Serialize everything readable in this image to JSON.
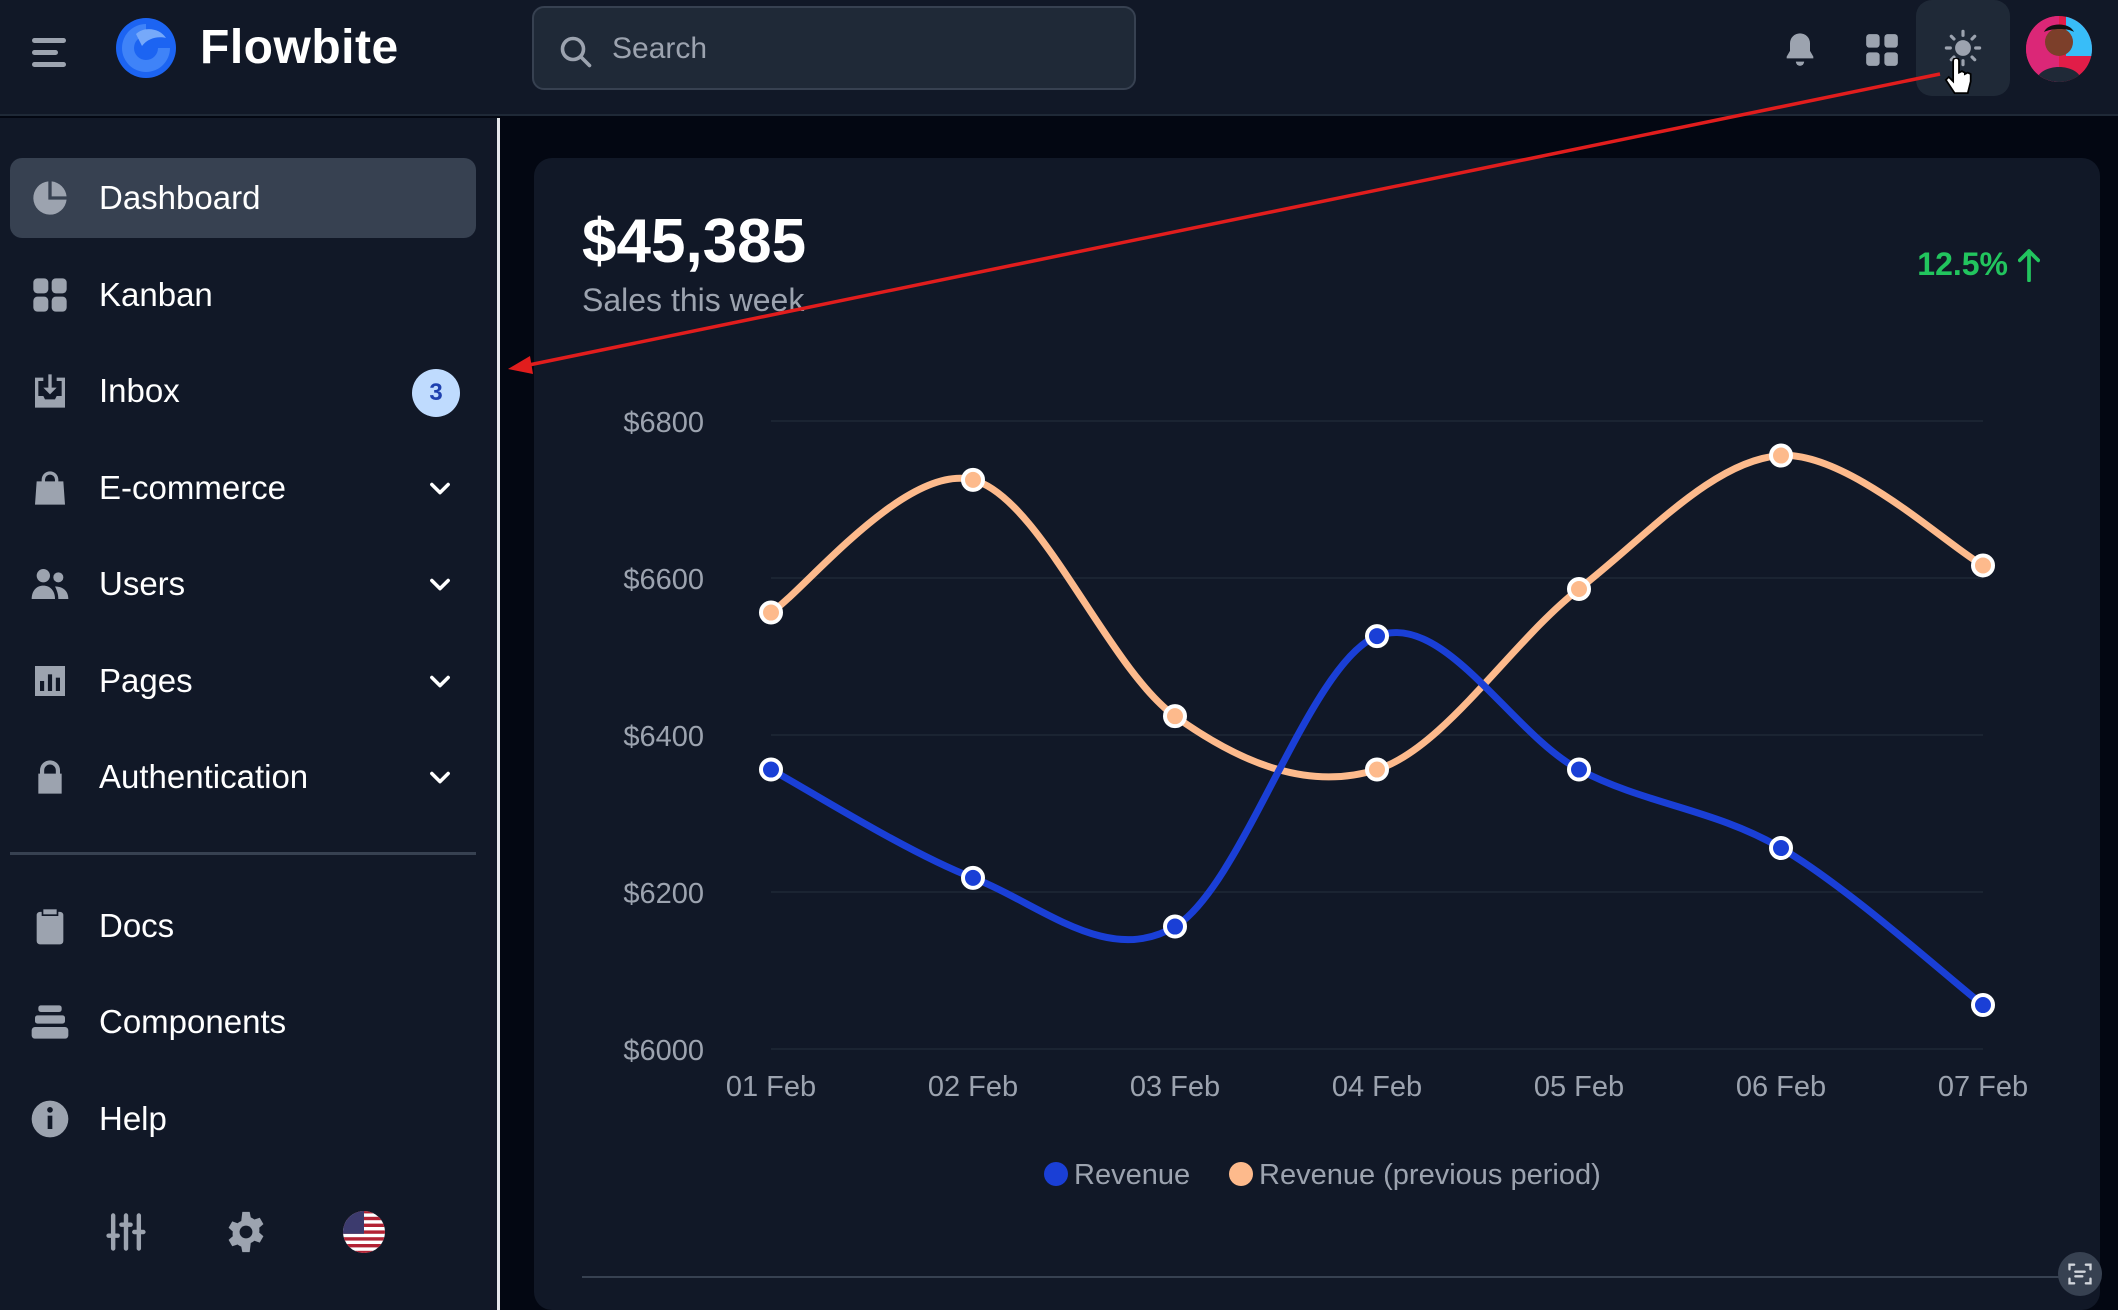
{
  "app": {
    "brand": "Flowbite"
  },
  "search": {
    "placeholder": "Search"
  },
  "sidebar": {
    "items": [
      {
        "label": "Dashboard",
        "icon": "chart-pie-icon",
        "active": true
      },
      {
        "label": "Kanban",
        "icon": "grid-icon"
      },
      {
        "label": "Inbox",
        "icon": "inbox-icon",
        "badge": "3"
      },
      {
        "label": "E-commerce",
        "icon": "shopping-bag-icon",
        "expandable": true
      },
      {
        "label": "Users",
        "icon": "users-icon",
        "expandable": true
      },
      {
        "label": "Pages",
        "icon": "chart-bar-icon",
        "expandable": true
      },
      {
        "label": "Authentication",
        "icon": "lock-icon",
        "expandable": true
      }
    ],
    "secondary": [
      {
        "label": "Docs",
        "icon": "clipboard-icon"
      },
      {
        "label": "Components",
        "icon": "stack-icon"
      },
      {
        "label": "Help",
        "icon": "info-icon"
      }
    ]
  },
  "sales": {
    "amount": "$45,385",
    "subtitle": "Sales this week",
    "growth": "12.5%"
  },
  "colors": {
    "revenue": "#1a3fd6",
    "previous": "#fdba8c",
    "growth": "#22c55e"
  },
  "chart_data": {
    "type": "line",
    "title": "",
    "categories": [
      "01 Feb",
      "02 Feb",
      "03 Feb",
      "04 Feb",
      "05 Feb",
      "06 Feb",
      "07 Feb"
    ],
    "series": [
      {
        "name": "Revenue",
        "values": [
          6356,
          6218,
          6156,
          6526,
          6356,
          6256,
          6056
        ]
      },
      {
        "name": "Revenue (previous period)",
        "values": [
          6556,
          6725,
          6424,
          6356,
          6586,
          6756,
          6616
        ]
      }
    ],
    "yticks": [
      "$6800",
      "$6600",
      "$6400",
      "$6200",
      "$6000"
    ],
    "ylim": [
      6000,
      6800
    ],
    "grid": true,
    "legend": "bottom"
  }
}
